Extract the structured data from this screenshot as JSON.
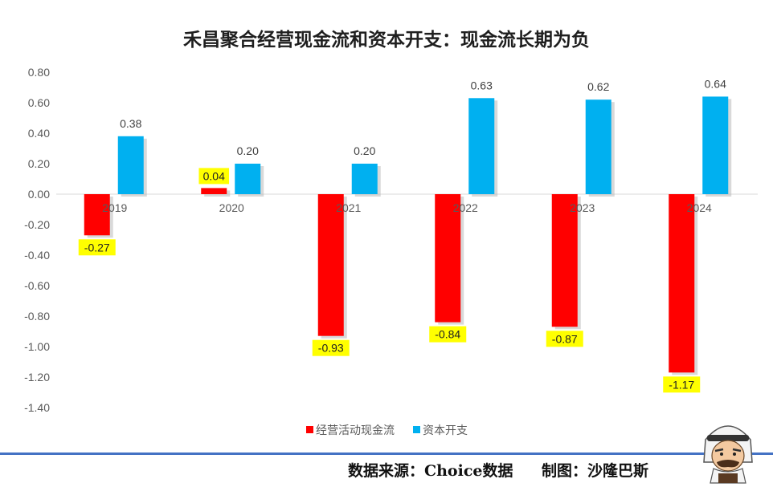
{
  "chart_data": {
    "type": "bar",
    "title": "禾昌聚合经营现金流和资本开支：现金流长期为负",
    "categories": [
      "2019",
      "2020",
      "2021",
      "2022",
      "2023",
      "2024"
    ],
    "series": [
      {
        "name": "经营活动现金流",
        "color": "#ff0000",
        "values": [
          -0.27,
          0.04,
          -0.93,
          -0.84,
          -0.87,
          -1.17
        ],
        "labels": [
          "-0.27",
          "0.04",
          "-0.93",
          "-0.84",
          "-0.87",
          "-1.17"
        ]
      },
      {
        "name": "资本开支",
        "color": "#00b0f0",
        "values": [
          0.38,
          0.2,
          0.2,
          0.63,
          0.62,
          0.64
        ],
        "labels": [
          "0.38",
          "0.20",
          "0.20",
          "0.63",
          "0.62",
          "0.64"
        ]
      }
    ],
    "ylim": [
      -1.4,
      0.8
    ],
    "yticks": [
      "0.80",
      "0.60",
      "0.40",
      "0.20",
      "0.00",
      "-0.20",
      "-0.40",
      "-0.60",
      "-0.80",
      "-1.00",
      "-1.20",
      "-1.40"
    ],
    "label_highlight": "#ffff00",
    "legend_position": "bottom",
    "grid": false
  },
  "footer": {
    "source": "数据来源：Choice数据",
    "credit": "制图：沙隆巴斯"
  },
  "mascot_icon": "bearded-man-mascot-icon"
}
